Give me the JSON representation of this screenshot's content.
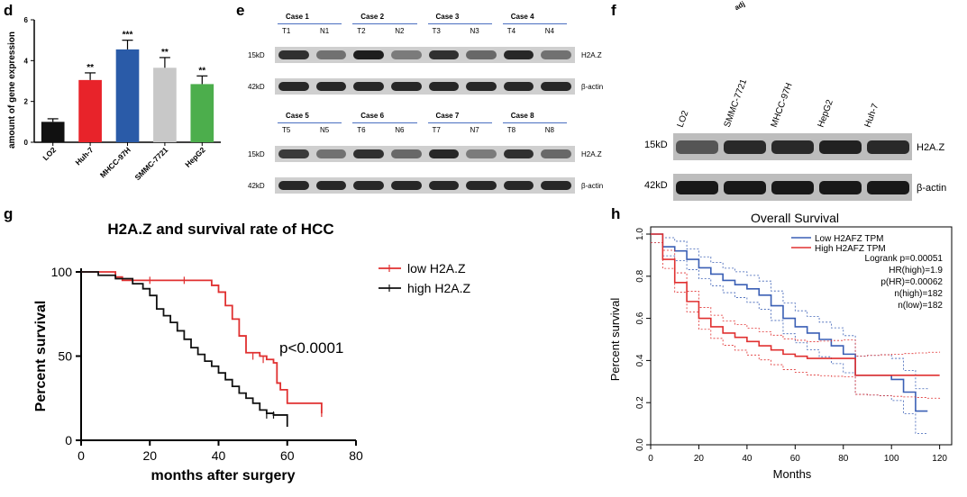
{
  "panels": {
    "d": {
      "letter": "d",
      "ylabel": "amount of gene expression",
      "yticks": [
        "0",
        "2",
        "4",
        "6"
      ],
      "significance": [
        "",
        "**",
        "***",
        "**",
        "**"
      ],
      "colors": [
        "#111111",
        "#e8232a",
        "#2a5ba8",
        "#c8c8c8",
        "#4cae4c"
      ]
    },
    "e": {
      "letter": "e",
      "groups_top": [
        {
          "case": "Case 1",
          "lanes": [
            "T1",
            "N1"
          ]
        },
        {
          "case": "Case 2",
          "lanes": [
            "T2",
            "N2"
          ]
        },
        {
          "case": "Case 3",
          "lanes": [
            "T3",
            "N3"
          ]
        },
        {
          "case": "Case 4",
          "lanes": [
            "T4",
            "N4"
          ]
        }
      ],
      "groups_bottom": [
        {
          "case": "Case 5",
          "lanes": [
            "T5",
            "N5"
          ]
        },
        {
          "case": "Case 6",
          "lanes": [
            "T6",
            "N6"
          ]
        },
        {
          "case": "Case 7",
          "lanes": [
            "T7",
            "N7"
          ]
        },
        {
          "case": "Case 8",
          "lanes": [
            "T8",
            "N8"
          ]
        }
      ],
      "mw_15": "15kD",
      "mw_42": "42kD",
      "target": "H2A.Z",
      "control": "β-actin"
    },
    "f": {
      "letter": "f",
      "top_fragment": "adj",
      "lanes": [
        "LO2",
        "SMMC-7721",
        "MHCC-97H",
        "HepG2",
        "Huh-7"
      ],
      "mw_15": "15kD",
      "mw_42": "42kD",
      "target": "H2A.Z",
      "control": "β-actin"
    },
    "g": {
      "letter": "g",
      "pvalue": "p<0.0001"
    },
    "h": {
      "letter": "h",
      "legend_lines": [
        "Logrank p=0.00051",
        "HR(high)=1.9",
        "p(HR)=0.00062",
        "n(high)=182",
        "n(low)=182"
      ]
    }
  },
  "chart_data": [
    {
      "type": "bar",
      "categories": [
        "LO2",
        "Huh-7",
        "MHCC-97H",
        "SMMC-7721",
        "HepG2"
      ],
      "values": [
        1.0,
        3.05,
        4.55,
        3.65,
        2.85
      ],
      "errors": [
        0.15,
        0.35,
        0.45,
        0.5,
        0.4
      ],
      "ylabel": "amount of gene expression",
      "ylim": [
        0,
        6
      ],
      "grid": false
    },
    {
      "type": "line",
      "title": "H2A.Z and survival rate of HCC",
      "xlabel": "months after surgery",
      "ylabel": "Percent survival",
      "xlim": [
        0,
        80
      ],
      "ylim": [
        0,
        100
      ],
      "xticks": [
        0,
        20,
        40,
        60,
        80
      ],
      "yticks": [
        0,
        50,
        100
      ],
      "legend": "top-right",
      "series": [
        {
          "name": "low H2A.Z",
          "color": "#e03030",
          "x": [
            0,
            7,
            10,
            12,
            36,
            38,
            40,
            42,
            44,
            46,
            48,
            52,
            54,
            56,
            57,
            58,
            60,
            70
          ],
          "y": [
            100,
            100,
            97,
            95,
            95,
            92,
            88,
            80,
            72,
            62,
            52,
            50,
            48,
            46,
            34,
            30,
            22,
            16
          ]
        },
        {
          "name": "high H2A.Z",
          "color": "#111111",
          "x": [
            0,
            5,
            10,
            15,
            18,
            20,
            22,
            24,
            26,
            28,
            30,
            32,
            34,
            36,
            38,
            40,
            42,
            44,
            46,
            48,
            50,
            52,
            54,
            56,
            58,
            60
          ],
          "y": [
            100,
            98,
            96,
            93,
            90,
            86,
            78,
            74,
            70,
            65,
            60,
            55,
            51,
            47,
            44,
            40,
            36,
            32,
            28,
            25,
            22,
            18,
            16,
            15,
            15,
            8
          ]
        }
      ],
      "annotations": [
        "p<0.0001"
      ]
    },
    {
      "type": "line",
      "title": "Overall Survival",
      "xlabel": "Months",
      "ylabel": "Percent survival",
      "xlim": [
        0,
        125
      ],
      "ylim": [
        0,
        1.0
      ],
      "xticks": [
        0,
        20,
        40,
        60,
        80,
        100,
        120
      ],
      "yticks": [
        0.0,
        0.2,
        0.4,
        0.6,
        0.8,
        1.0
      ],
      "legend": "top-right",
      "series": [
        {
          "name": "Low H2AFZ TPM",
          "color": "#3a5fb5",
          "x": [
            0,
            5,
            10,
            15,
            20,
            25,
            30,
            35,
            40,
            45,
            50,
            55,
            60,
            65,
            70,
            75,
            80,
            85,
            90,
            95,
            100,
            105,
            110,
            115
          ],
          "y": [
            1.0,
            0.94,
            0.92,
            0.88,
            0.84,
            0.81,
            0.78,
            0.76,
            0.74,
            0.71,
            0.66,
            0.6,
            0.56,
            0.53,
            0.5,
            0.47,
            0.43,
            0.33,
            0.33,
            0.33,
            0.31,
            0.25,
            0.16,
            0.16
          ]
        },
        {
          "name": "High H2AFZ TPM",
          "color": "#e03030",
          "x": [
            0,
            5,
            10,
            15,
            20,
            25,
            30,
            35,
            40,
            45,
            50,
            55,
            60,
            65,
            70,
            75,
            80,
            85,
            90,
            95,
            100,
            105,
            110,
            115,
            120
          ],
          "y": [
            1.0,
            0.88,
            0.77,
            0.68,
            0.6,
            0.56,
            0.53,
            0.51,
            0.49,
            0.47,
            0.45,
            0.43,
            0.42,
            0.41,
            0.41,
            0.41,
            0.41,
            0.33,
            0.33,
            0.33,
            0.33,
            0.33,
            0.33,
            0.33,
            0.33
          ]
        }
      ],
      "annotations": [
        "Logrank p=0.00051",
        "HR(high)=1.9",
        "p(HR)=0.00062",
        "n(high)=182",
        "n(low)=182"
      ]
    }
  ]
}
